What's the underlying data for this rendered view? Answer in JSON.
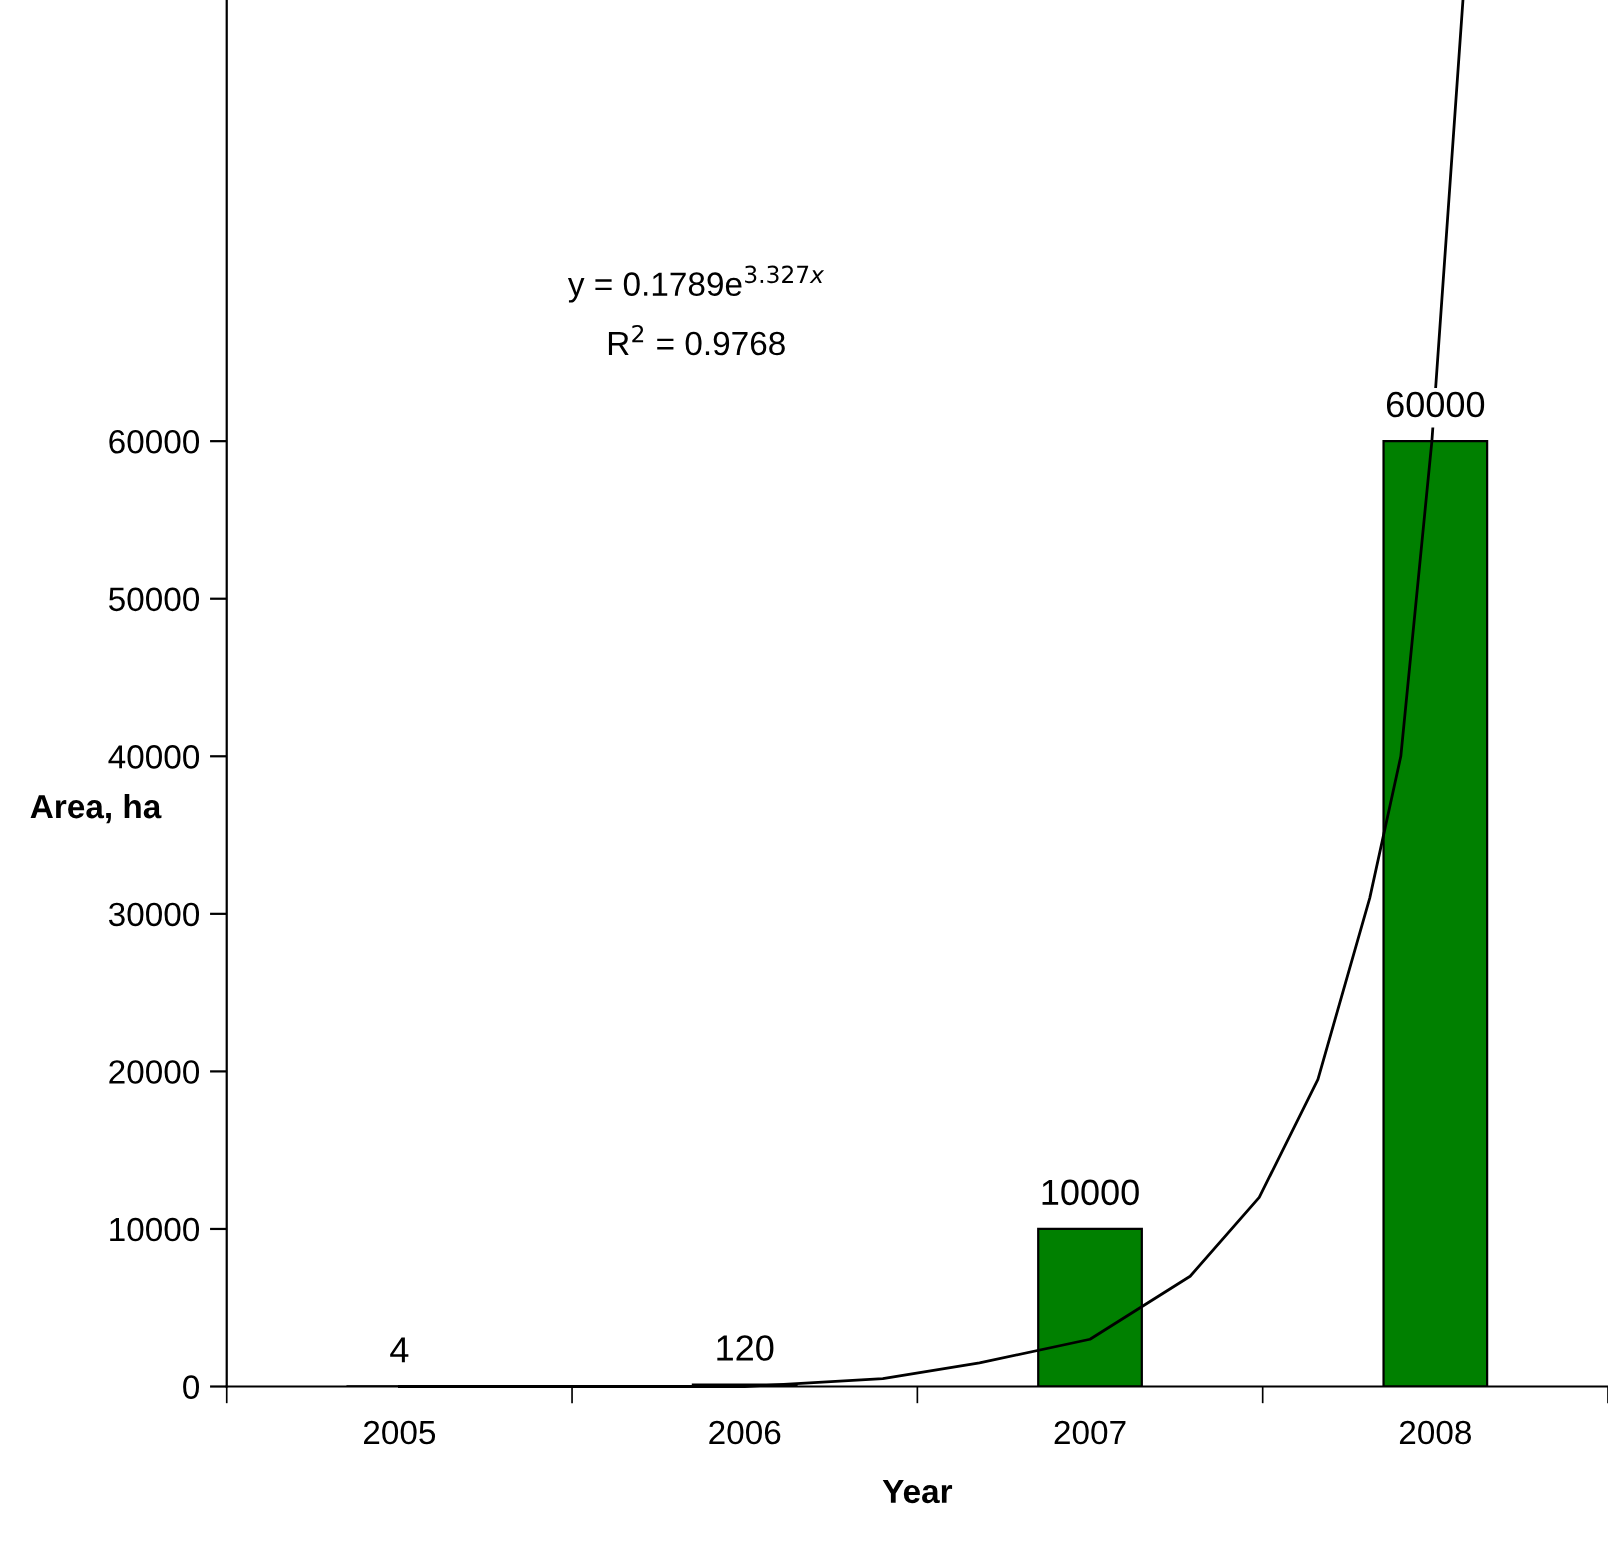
{
  "chart_data": {
    "type": "bar",
    "xlabel": "Year",
    "ylabel": "Area, ha",
    "x": [
      2005,
      2006,
      2007,
      2008
    ],
    "series": [
      {
        "color": "#008000",
        "values": [
          4,
          120,
          10000,
          60000
        ],
        "value_labels": [
          "4",
          "120",
          "10000",
          "60000"
        ]
      },
      {
        "type": "line",
        "color": "#000000",
        "x": [
          2005,
          2006,
          2006.4,
          2006.68,
          2007,
          2007.29,
          2007.49,
          2007.66,
          2007.81,
          2007.9,
          2007.99,
          2008.08
        ],
        "values": [
          0,
          0,
          500,
          1500,
          3000,
          7000,
          12000,
          19500,
          31000,
          40000,
          60000,
          88000
        ]
      }
    ],
    "xlim": [
      2004.5,
      2008.5
    ],
    "xticks": [
      {
        "value": 2004.5,
        "label": null
      },
      2005,
      {
        "value": 2005.5,
        "label": null
      },
      2006,
      {
        "value": 2006.5,
        "label": null
      },
      2007,
      {
        "value": 2007.5,
        "label": null
      },
      2008,
      {
        "value": 2008.5,
        "label": null
      }
    ],
    "ylim": [
      0,
      88000
    ],
    "yticks": [
      0,
      10000,
      20000,
      30000,
      40000,
      50000,
      60000
    ],
    "annotations": [
      "y = 0.1789e$^{3.327x}$",
      "R$^{2}$ = 0.9768"
    ],
    "grid": false,
    "legend": false,
    "marker": "none",
    "line_style": "solid"
  }
}
